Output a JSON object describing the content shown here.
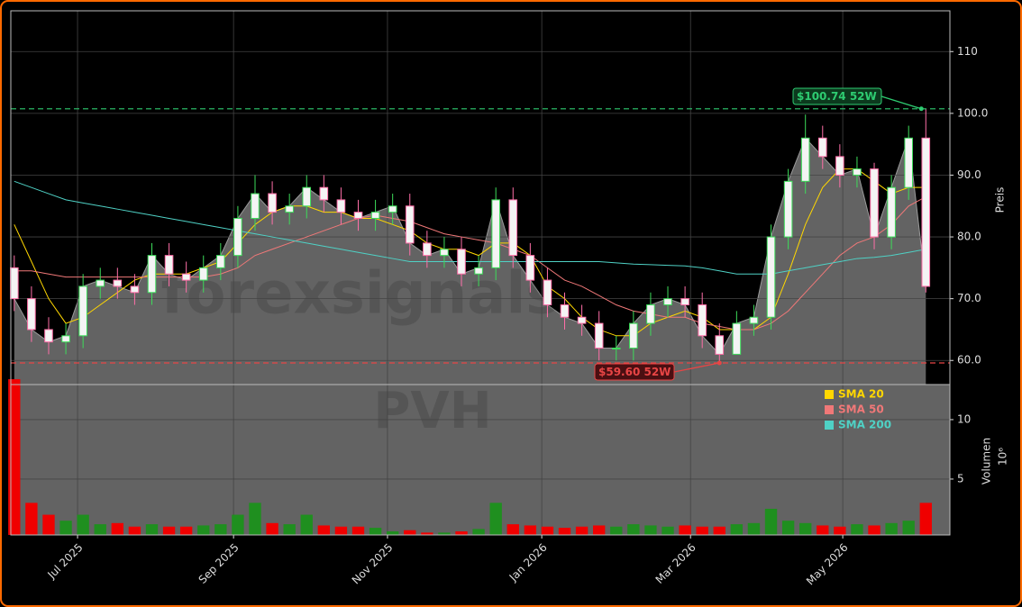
{
  "chart_data": [
    {
      "type": "candlestick",
      "x": [
        0,
        1,
        2,
        3,
        4,
        5,
        6,
        7,
        8,
        9,
        10,
        11,
        12,
        13,
        14,
        15,
        16,
        17,
        18,
        19,
        20,
        21,
        22,
        23,
        24,
        25,
        26,
        27,
        28,
        29,
        30,
        31,
        32,
        33,
        34,
        35,
        36,
        37,
        38,
        39,
        40,
        41,
        42,
        43,
        44,
        45,
        46,
        47,
        48,
        49,
        50,
        51,
        52,
        53
      ],
      "open": [
        75,
        70,
        65,
        63,
        64,
        72,
        73,
        72,
        71,
        77,
        74,
        73,
        75,
        77,
        83,
        87,
        84,
        85,
        88,
        86,
        84,
        83,
        84,
        85,
        79,
        77,
        78,
        74,
        75,
        86,
        77,
        73,
        69,
        67,
        66,
        62,
        62,
        66,
        69,
        70,
        69,
        64,
        61,
        66,
        67,
        80,
        89,
        96,
        93,
        90,
        91,
        80,
        88,
        96
      ],
      "high": [
        77,
        72,
        67,
        66,
        74,
        75,
        75,
        74,
        79,
        79,
        76,
        77,
        79,
        85,
        90,
        89,
        87,
        90,
        90,
        88,
        86,
        86,
        87,
        87,
        81,
        80,
        80,
        77,
        88,
        88,
        79,
        75,
        71,
        69,
        68,
        64,
        68,
        71,
        72,
        72,
        71,
        66,
        68,
        69,
        82,
        91,
        99.8,
        98,
        95,
        93,
        92,
        90,
        98,
        100.74
      ],
      "low": [
        68,
        63,
        61,
        61,
        62,
        70,
        70,
        69,
        69,
        72,
        71,
        71,
        73,
        75,
        81,
        82,
        82,
        83,
        84,
        82,
        81,
        81,
        82,
        77,
        75,
        75,
        72,
        72,
        73,
        75,
        71,
        67,
        65,
        64,
        60,
        60,
        60,
        64,
        67,
        67,
        62,
        59.6,
        61,
        64,
        65,
        78,
        87,
        91,
        88,
        88,
        78,
        78,
        86,
        71
      ],
      "close": [
        70,
        65,
        63,
        64,
        72,
        73,
        72,
        71,
        77,
        74,
        73,
        75,
        77,
        83,
        87,
        84,
        85,
        88,
        86,
        84,
        83,
        84,
        85,
        79,
        77,
        78,
        74,
        75,
        86,
        77,
        73,
        69,
        67,
        66,
        62,
        62,
        66,
        69,
        70,
        69,
        64,
        61,
        66,
        67,
        80,
        89,
        96,
        93,
        90,
        91,
        80,
        88,
        96,
        72
      ],
      "up_color": "#3ddc5a",
      "down_color": "#ff6fa8",
      "area_color": "#636363",
      "series": [
        {
          "name": "SMA 20",
          "color": "#ffd700",
          "values": [
            82,
            76,
            70,
            66,
            67,
            69,
            71,
            73,
            74,
            74,
            74,
            75,
            76,
            79,
            82,
            84,
            85,
            85,
            84,
            84,
            83,
            83,
            82,
            81,
            79,
            78,
            78,
            77,
            79,
            79,
            77,
            72,
            70,
            67,
            65,
            64,
            64,
            66,
            67,
            68,
            67,
            65,
            65,
            65,
            67,
            74,
            82,
            88,
            91,
            91,
            89,
            87,
            88,
            88
          ]
        },
        {
          "name": "SMA 50",
          "color": "#f07878",
          "values": [
            74.5,
            74.5,
            74,
            73.5,
            73.5,
            73.5,
            73.5,
            73.5,
            73.5,
            73.5,
            73.5,
            73.5,
            74,
            75,
            77,
            78,
            79,
            80,
            81,
            82,
            83,
            83.5,
            83,
            82.5,
            81.5,
            80.5,
            80,
            79.5,
            79,
            78,
            77,
            75,
            73,
            72,
            70.5,
            69,
            68,
            67.5,
            67,
            67,
            66,
            65.5,
            65,
            65,
            66,
            68,
            71,
            74,
            77,
            79,
            80,
            82,
            85,
            86.5
          ]
        },
        {
          "name": "SMA 200",
          "color": "#4fd1c5",
          "values": [
            89,
            88,
            87,
            86,
            85.5,
            85,
            84.5,
            84,
            83.5,
            83,
            82.5,
            82,
            81.5,
            81,
            80.5,
            80,
            79.5,
            79,
            78.5,
            78,
            77.5,
            77,
            76.5,
            76,
            76,
            76,
            76,
            76,
            76,
            76,
            76,
            76,
            76,
            76,
            76,
            75.8,
            75.6,
            75.5,
            75.4,
            75.3,
            75,
            74.5,
            74,
            74,
            74,
            74.5,
            75,
            75.5,
            76,
            76.5,
            76.7,
            77,
            77.5,
            78
          ]
        }
      ],
      "annotations": [
        {
          "value": 100.74,
          "label": "$100.74 52W",
          "color": "#2ecc71"
        },
        {
          "value": 59.6,
          "label": "$59.60 52W",
          "color": "#e84545"
        }
      ],
      "xlim": [
        -0.2,
        54.4
      ],
      "ylim": [
        56.1,
        116.6
      ],
      "yticks": [
        {
          "value": 60,
          "label": "60.0"
        },
        {
          "value": 70,
          "label": "70.0"
        },
        {
          "value": 80,
          "label": "80.0"
        },
        {
          "value": 90,
          "label": "90.0"
        },
        {
          "value": 100,
          "label": "100.0"
        },
        110
      ],
      "y_label": "Preis",
      "watermark": "forexsignals",
      "grid": true,
      "legend": "lower right"
    },
    {
      "type": "bar",
      "values": [
        13.4,
        3,
        2,
        1.5,
        2,
        1.2,
        1.3,
        1,
        1.2,
        1,
        1,
        1.1,
        1.2,
        2,
        3,
        1.3,
        1.2,
        2,
        1.1,
        1,
        1,
        0.9,
        0.6,
        0.7,
        0.5,
        0.5,
        0.6,
        0.8,
        3,
        1.2,
        1.1,
        1,
        0.9,
        1,
        1.1,
        1,
        1.2,
        1.1,
        1,
        1.1,
        1,
        1,
        1.2,
        1.3,
        2.5,
        1.5,
        1.3,
        1.1,
        1,
        1.2,
        1.1,
        1.3,
        1.5,
        3
      ],
      "up_color": "#1f8f1f",
      "down_color": "#f00000",
      "ylim": [
        0.3,
        12.95
      ],
      "yticks": [
        5,
        10
      ],
      "xticks": [
        {
          "value": 3.68,
          "label": "Jul 2025"
        },
        {
          "value": 12.75,
          "label": "Sep 2025"
        },
        {
          "value": 21.7,
          "label": "Nov 2025"
        },
        {
          "value": 30.67,
          "label": "Jan 2026"
        },
        {
          "value": 39.32,
          "label": "Mar 2026"
        },
        {
          "value": 48.17,
          "label": "May 2026"
        }
      ],
      "y_label": "Volumen",
      "offset_label": "10⁶",
      "watermark": "PVH",
      "grid": true
    }
  ]
}
